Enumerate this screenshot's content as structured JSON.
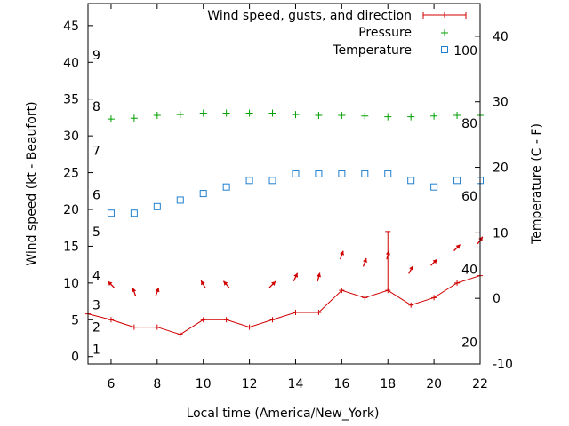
{
  "chart_data": {
    "type": "line",
    "xlabel": "Local time (America/New_York)",
    "ylabel_left": "Wind speed (kt - Beaufort)",
    "ylabel_right": "Temperature (C - F)",
    "x_ticks": [
      6,
      8,
      10,
      12,
      14,
      16,
      18,
      20,
      22
    ],
    "xlim": [
      5,
      22
    ],
    "y_left_ticks": [
      0,
      5,
      10,
      15,
      20,
      25,
      30,
      35,
      40,
      45
    ],
    "ylim_left": [
      -1,
      48
    ],
    "y_right_ticks": [
      -10,
      0,
      10,
      20,
      30,
      40
    ],
    "ylim_right": [
      -10,
      45
    ],
    "beaufort_labels": [
      {
        "label": "1",
        "kt": 1
      },
      {
        "label": "2",
        "kt": 4
      },
      {
        "label": "3",
        "kt": 7
      },
      {
        "label": "4",
        "kt": 11
      },
      {
        "label": "5",
        "kt": 17
      },
      {
        "label": "6",
        "kt": 22
      },
      {
        "label": "7",
        "kt": 28
      },
      {
        "label": "8",
        "kt": 34
      },
      {
        "label": "9",
        "kt": 41
      }
    ],
    "fahrenheit_labels": [
      {
        "label": "20",
        "c": -6.7
      },
      {
        "label": "40",
        "c": 4.4
      },
      {
        "label": "60",
        "c": 15.6
      },
      {
        "label": "80",
        "c": 26.7
      },
      {
        "label": "100",
        "c": 37.8
      }
    ],
    "legend_position": "top-right",
    "series": [
      {
        "name": "Wind speed, gusts, and direction",
        "color": "#d00000",
        "x": [
          5,
          6,
          7,
          8,
          9,
          10,
          11,
          12,
          13,
          14,
          15,
          16,
          17,
          18,
          19,
          20,
          21,
          22
        ],
        "values": [
          5.8,
          5,
          4,
          4,
          3,
          5,
          5,
          4,
          5,
          6,
          6,
          9,
          8,
          9,
          7,
          8,
          10,
          11
        ],
        "gusts": [
          {
            "x": 18,
            "value": 17
          }
        ],
        "direction_arrows_deg": [
          {
            "x": 6,
            "deg": 135
          },
          {
            "x": 7,
            "deg": 160
          },
          {
            "x": 8,
            "deg": 200
          },
          {
            "x": 10,
            "deg": 150
          },
          {
            "x": 11,
            "deg": 140
          },
          {
            "x": 13,
            "deg": 225
          },
          {
            "x": 14,
            "deg": 205
          },
          {
            "x": 15,
            "deg": 195
          },
          {
            "x": 16,
            "deg": 200
          },
          {
            "x": 17,
            "deg": 200
          },
          {
            "x": 18,
            "deg": 195
          },
          {
            "x": 19,
            "deg": 210
          },
          {
            "x": 20,
            "deg": 225
          },
          {
            "x": 21,
            "deg": 225
          },
          {
            "x": 22,
            "deg": 215
          }
        ]
      },
      {
        "name": "Pressure",
        "color": "#00a000",
        "x": [
          6,
          7,
          8,
          9,
          10,
          11,
          12,
          13,
          14,
          15,
          16,
          17,
          18,
          19,
          20,
          21,
          22
        ],
        "values": [
          32.3,
          32.4,
          32.8,
          32.9,
          33.1,
          33.1,
          33.1,
          33.1,
          32.9,
          32.8,
          32.8,
          32.7,
          32.6,
          32.6,
          32.7,
          32.8,
          32.8
        ]
      },
      {
        "name": "Temperature",
        "color": "#1f7fd0",
        "x": [
          6,
          7,
          8,
          9,
          10,
          11,
          12,
          13,
          14,
          15,
          16,
          17,
          18,
          19,
          20,
          21,
          22
        ],
        "values": [
          13,
          13,
          14,
          15,
          16,
          17,
          18,
          18,
          19,
          19,
          19,
          19,
          19,
          18,
          17,
          18,
          18
        ]
      }
    ]
  }
}
